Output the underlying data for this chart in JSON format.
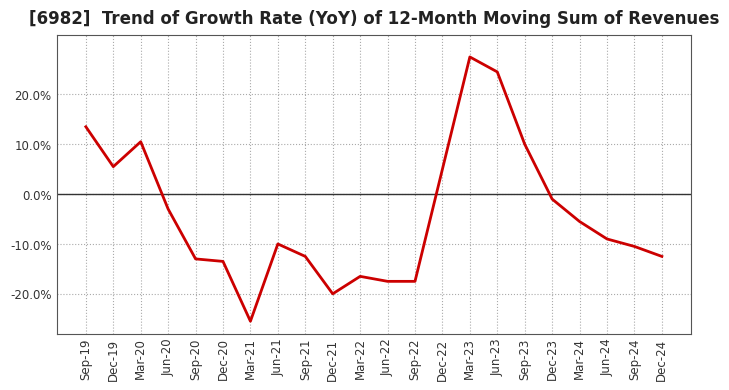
{
  "title": "[6982]  Trend of Growth Rate (YoY) of 12-Month Moving Sum of Revenues",
  "x_labels": [
    "Sep-19",
    "Dec-19",
    "Mar-20",
    "Jun-20",
    "Sep-20",
    "Dec-20",
    "Mar-21",
    "Jun-21",
    "Sep-21",
    "Dec-21",
    "Mar-22",
    "Jun-22",
    "Sep-22",
    "Dec-22",
    "Mar-23",
    "Jun-23",
    "Sep-23",
    "Dec-23",
    "Mar-24",
    "Jun-24",
    "Sep-24",
    "Dec-24"
  ],
  "y_values": [
    0.135,
    0.055,
    0.105,
    -0.03,
    -0.13,
    -0.135,
    -0.255,
    -0.1,
    -0.125,
    -0.2,
    -0.165,
    -0.175,
    -0.175,
    0.05,
    0.275,
    0.245,
    0.1,
    -0.01,
    -0.055,
    -0.09,
    -0.105,
    -0.125
  ],
  "line_color": "#cc0000",
  "background_color": "#ffffff",
  "plot_bg_color": "#ffffff",
  "grid_color": "#aaaaaa",
  "ylim": [
    -0.28,
    0.32
  ],
  "yticks": [
    -0.2,
    -0.1,
    0.0,
    0.1,
    0.2
  ],
  "title_fontsize": 12,
  "axis_fontsize": 8.5,
  "line_width": 2.0
}
